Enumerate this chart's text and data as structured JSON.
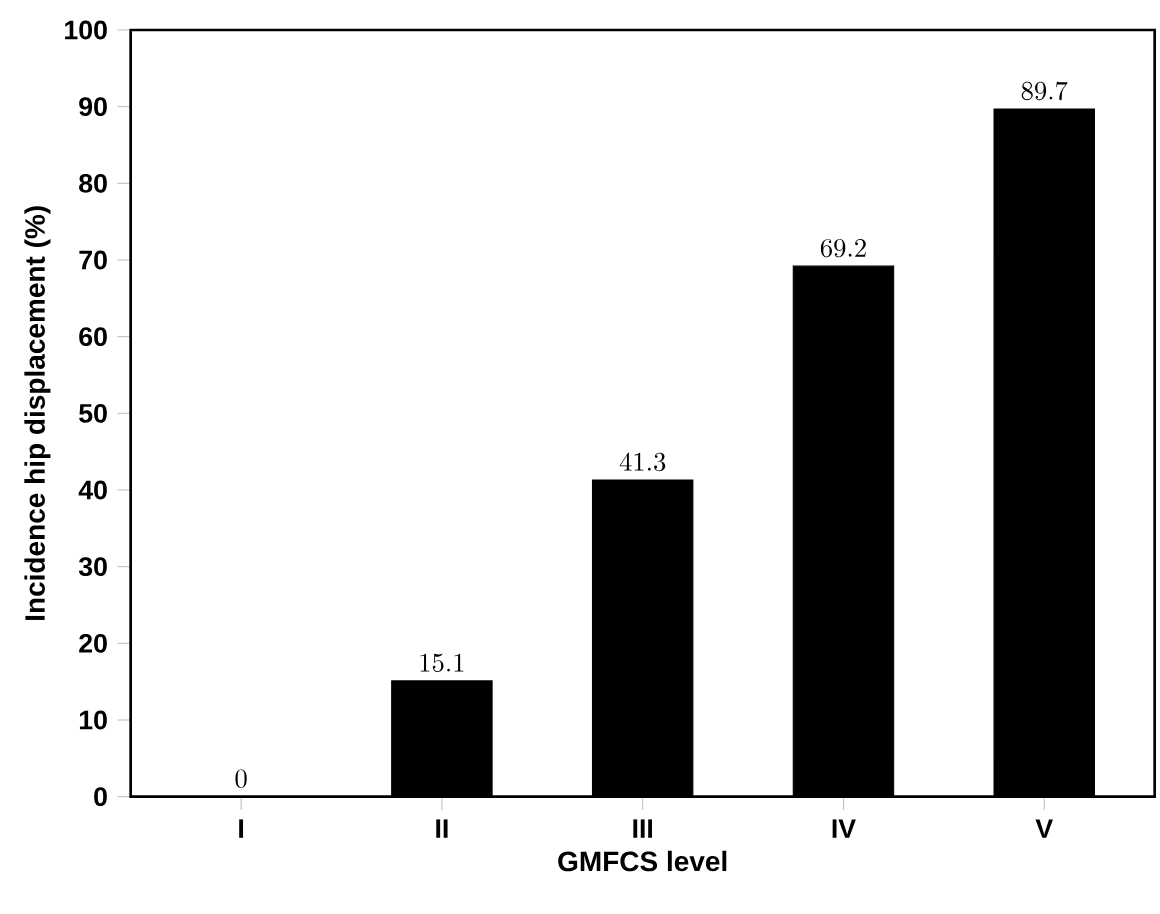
{
  "chart_data": {
    "type": "bar",
    "xlabel": "GMFCS level",
    "ylabel": "Incidence hip displacement (%)",
    "categories": [
      "I",
      "II",
      "III",
      "IV",
      "V"
    ],
    "values": [
      0,
      15.1,
      41.3,
      69.2,
      89.7
    ],
    "color": "#000000",
    "ylim": [
      0,
      100
    ],
    "yticks": [
      0,
      10,
      20,
      30,
      40,
      50,
      60,
      70,
      80,
      90,
      100
    ],
    "data_labels": true
  }
}
